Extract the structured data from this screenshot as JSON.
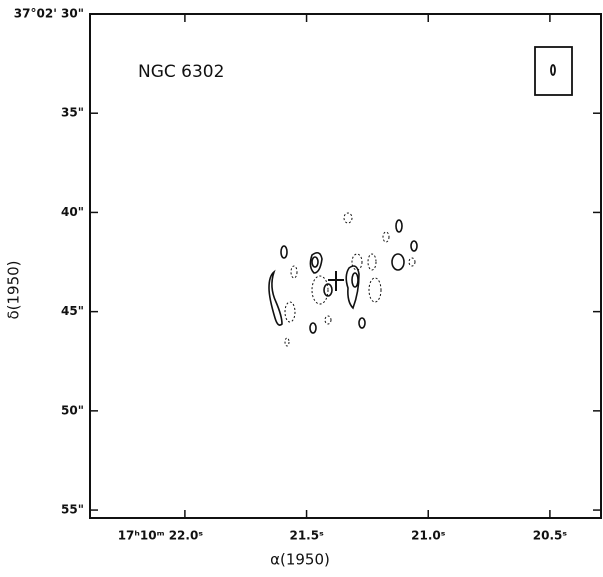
{
  "chart_data": {
    "type": "contour",
    "title": "NGC 6302",
    "xlabel": "α(1950)",
    "ylabel": "δ(1950)",
    "xlim": [
      22.39,
      20.29
    ],
    "ylim": [
      30,
      55.4
    ],
    "xticks": [
      {
        "value": 22.0,
        "label": "17ʰ10ᵐ 22.0ˢ"
      },
      {
        "value": 21.5,
        "label": "21.5ˢ"
      },
      {
        "value": 21.0,
        "label": "21.0ˢ"
      },
      {
        "value": 20.5,
        "label": "20.5ˢ"
      }
    ],
    "yticks": [
      {
        "value": 30,
        "label": "37°02' 30\""
      },
      {
        "value": 35,
        "label": "35\""
      },
      {
        "value": 40,
        "label": "40\""
      },
      {
        "value": 45,
        "label": "45\""
      },
      {
        "value": 50,
        "label": "50\""
      },
      {
        "value": 55,
        "label": "55\""
      }
    ]
  }
}
